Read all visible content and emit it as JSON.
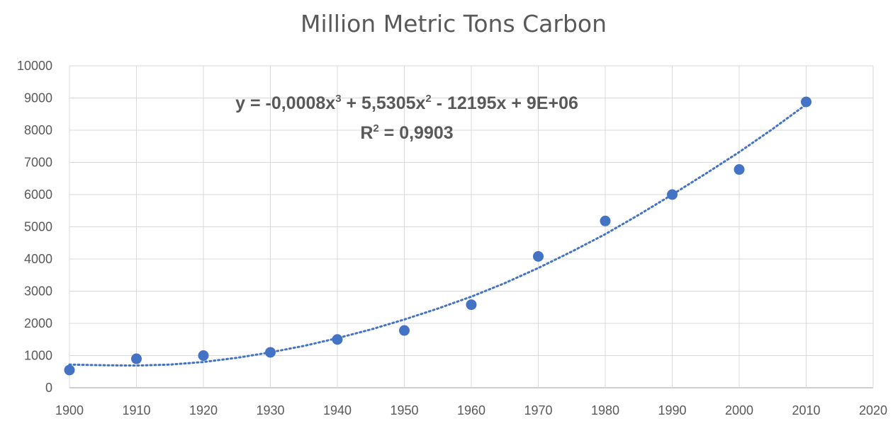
{
  "chart_data": {
    "type": "scatter",
    "title": "Million Metric Tons Carbon",
    "xlabel": "",
    "ylabel": "",
    "xlim": [
      1900,
      2020
    ],
    "ylim": [
      0,
      10000
    ],
    "x_ticks": [
      1900,
      1910,
      1920,
      1930,
      1940,
      1950,
      1960,
      1970,
      1980,
      1990,
      2000,
      2010,
      2020
    ],
    "y_ticks": [
      0,
      1000,
      2000,
      3000,
      4000,
      5000,
      6000,
      7000,
      8000,
      9000,
      10000
    ],
    "grid": true,
    "series": [
      {
        "name": "Million Metric Tons Carbon",
        "x": [
          1900,
          1910,
          1920,
          1930,
          1940,
          1950,
          1960,
          1970,
          1980,
          1990,
          2000,
          2010
        ],
        "y": [
          550,
          900,
          1000,
          1100,
          1500,
          1780,
          2580,
          4080,
          5180,
          6000,
          6780,
          8880
        ]
      }
    ],
    "trendline": {
      "type": "polynomial",
      "order": 3,
      "x": [
        1900,
        1905,
        1910,
        1915,
        1920,
        1925,
        1930,
        1935,
        1940,
        1945,
        1950,
        1955,
        1960,
        1965,
        1970,
        1975,
        1980,
        1985,
        1990,
        1995,
        2000,
        2005,
        2010
      ],
      "y": [
        720,
        700,
        690,
        720,
        800,
        930,
        1100,
        1300,
        1540,
        1810,
        2120,
        2460,
        2830,
        3250,
        3720,
        4230,
        4770,
        5370,
        6000,
        6650,
        7320,
        8040,
        8800
      ],
      "equation_line1_prefix": "y = -0,0008x",
      "equation_line1_sup1": "3",
      "equation_line1_mid": " + 5,5305x",
      "equation_line1_sup2": "2",
      "equation_line1_suffix": " - 12195x + 9E+06",
      "r2_prefix": "R",
      "r2_sup": "2",
      "r2_suffix": " = 0,9903"
    },
    "colors": {
      "marker": "#4472c4",
      "trendline": "#4472c4",
      "grid": "#d9d9d9",
      "text": "#595959"
    }
  }
}
